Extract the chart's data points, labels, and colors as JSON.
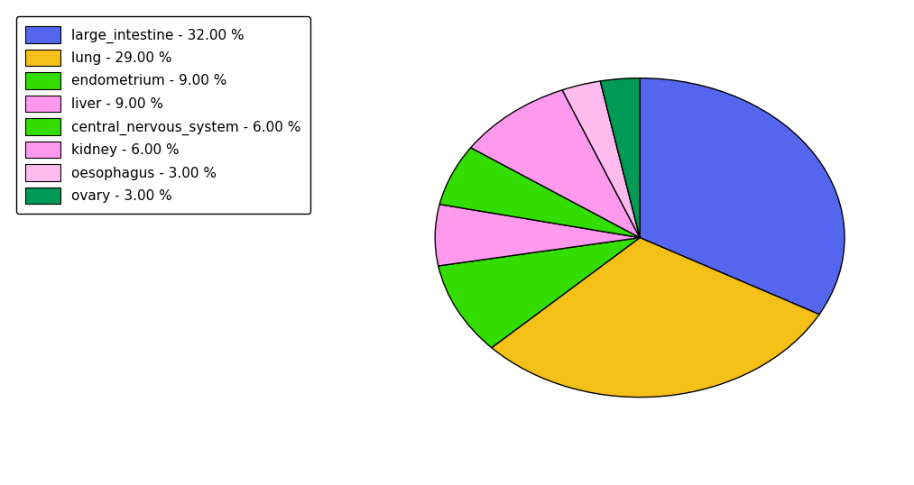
{
  "labels": [
    "large_intestine",
    "lung",
    "endometrium",
    "kidney",
    "central_nervous_system",
    "liver",
    "oesophagus",
    "ovary"
  ],
  "values": [
    32,
    29,
    9,
    6,
    6,
    9,
    3,
    3
  ],
  "colors": [
    "#5566ee",
    "#f5c018",
    "#33dd00",
    "#ff99ee",
    "#33dd00",
    "#ff99ee",
    "#ffbbee",
    "#009955"
  ],
  "legend_labels": [
    "large_intestine - 32.00 %",
    "lung - 29.00 %",
    "endometrium - 9.00 %",
    "liver - 9.00 %",
    "central_nervous_system - 6.00 %",
    "kidney - 6.00 %",
    "oesophagus - 3.00 %",
    "ovary - 3.00 %"
  ],
  "legend_colors": [
    "#5566ee",
    "#f5c018",
    "#33dd00",
    "#ff99ee",
    "#33dd00",
    "#ff99ee",
    "#ffbbee",
    "#009955"
  ],
  "figsize": [
    10.13,
    5.38
  ],
  "dpi": 100
}
